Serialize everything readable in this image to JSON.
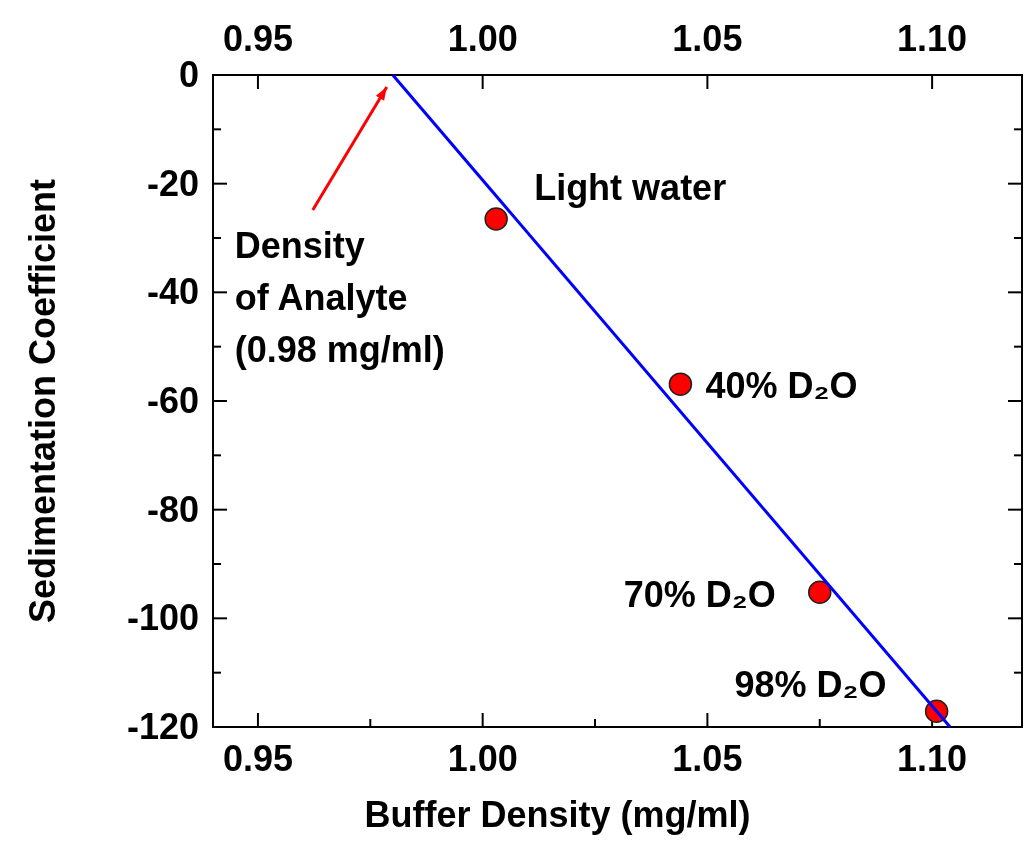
{
  "chart_data": {
    "type": "scatter",
    "xlabel": "Buffer Density (mg/ml)",
    "ylabel": "Sedimentation Coefficient",
    "xlim": [
      0.94,
      1.12
    ],
    "xticks": [
      0.95,
      {
        "value": 1.0,
        "label": "1.00"
      },
      1.05,
      {
        "value": 1.1,
        "label": "1.10"
      },
      {
        "value": 0.975,
        "label": null
      },
      {
        "value": 1.025,
        "label": null
      },
      {
        "value": 1.075,
        "label": null
      }
    ],
    "x2lim": [
      0.94,
      1.12
    ],
    "x2ticks": [
      0.95,
      {
        "value": 1.0,
        "label": "1.00"
      },
      1.05,
      {
        "value": 1.1,
        "label": "1.10"
      }
    ],
    "ylim": [
      -120,
      0
    ],
    "yticks": [
      0,
      -20,
      -40,
      -60,
      -80,
      -100,
      -120,
      {
        "value": -10,
        "label": null
      },
      {
        "value": -30,
        "label": null
      },
      {
        "value": -50,
        "label": null
      },
      {
        "value": -70,
        "label": null
      },
      {
        "value": -90,
        "label": null
      },
      {
        "value": -110,
        "label": null
      }
    ],
    "grid": false,
    "series": [
      {
        "type": "scatter",
        "color": "#ff0000",
        "marker": "circle",
        "x": [
          1.003,
          1.044,
          1.075,
          1.101
        ],
        "values": [
          -26.5,
          -56.9,
          -95.2,
          -117.1
        ]
      },
      {
        "type": "line",
        "color": "#0000ff",
        "marker": "none",
        "line_style": "solid",
        "x": [
          0.98,
          1.104
        ],
        "values": [
          0,
          -120
        ]
      }
    ],
    "annotations": [
      {
        "text": "Light water",
        "x": 1.003,
        "y": -26.5
      },
      {
        "text": "40% D₂O",
        "x": 1.044,
        "y": -56.9
      },
      {
        "text": "70% D₂O",
        "x": 1.075,
        "y": -95.2
      },
      {
        "text": "98% D₂O",
        "x": 1.101,
        "y": -117.1
      },
      "Density\nof Analyte\n(0.98 mg/ml)"
    ]
  }
}
